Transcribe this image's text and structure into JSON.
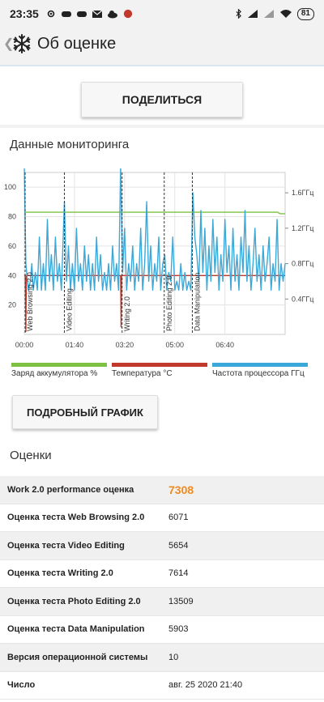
{
  "status_bar": {
    "time": "23:35",
    "battery": "81"
  },
  "app_bar": {
    "title": "Об оценке",
    "logo": "snowflake-icon"
  },
  "share_button": "ПОДЕЛИТЬСЯ",
  "monitoring": {
    "title": "Данные мониторинга",
    "legend": [
      {
        "label": "Заряд аккумулятора %",
        "color": "#7dc142"
      },
      {
        "label": "Температура °C",
        "color": "#c0392b"
      },
      {
        "label": "Частота процессора ГГц",
        "color": "#3aa8d8"
      }
    ]
  },
  "chart_data": {
    "type": "line",
    "x_ticks": [
      "00:00",
      "01:40",
      "03:20",
      "05:00",
      "06:40"
    ],
    "y_left_ticks": [
      20,
      40,
      60,
      80,
      100
    ],
    "y_left_range": [
      0,
      110
    ],
    "y_right_ticks": [
      "0.4ГГц",
      "0.8ГГц",
      "1.2ГГц",
      "1.6ГГц"
    ],
    "y_right_values": [
      0.4,
      0.8,
      1.2,
      1.6
    ],
    "y_right_range": [
      0,
      1.83
    ],
    "x_range_min": [
      0,
      520
    ],
    "test_markers": [
      {
        "label": "Web Browsing 2.0",
        "x_min": 0
      },
      {
        "label": "Video Editing",
        "x_min": 80
      },
      {
        "label": "Writing 2.0",
        "x_min": 195
      },
      {
        "label": "Photo Editing 2.0",
        "x_min": 279
      },
      {
        "label": "Data Manipulation",
        "x_min": 335
      }
    ],
    "series": [
      {
        "name": "Заряд аккумулятора %",
        "color": "#7dc142",
        "axis": "left",
        "points": [
          [
            0,
            83
          ],
          [
            505,
            83
          ],
          [
            510,
            82
          ],
          [
            520,
            82
          ]
        ]
      },
      {
        "name": "Температура °C",
        "color": "#c0392b",
        "axis": "left",
        "points": [
          [
            0,
            40
          ],
          [
            2,
            40
          ],
          [
            3,
            2
          ],
          [
            4,
            40
          ],
          [
            192,
            40
          ],
          [
            193,
            5
          ],
          [
            194,
            40
          ],
          [
            520,
            40
          ]
        ]
      },
      {
        "name": "Частота процессора ГГц",
        "color": "#3aa8d8",
        "axis": "right",
        "points": [
          [
            0,
            1.9
          ],
          [
            3,
            0.8
          ],
          [
            8,
            0.5
          ],
          [
            12,
            0.6
          ],
          [
            15,
            0.8
          ],
          [
            18,
            0.5
          ],
          [
            22,
            0.7
          ],
          [
            26,
            0.5
          ],
          [
            30,
            1.1
          ],
          [
            34,
            0.5
          ],
          [
            38,
            0.8
          ],
          [
            42,
            0.5
          ],
          [
            46,
            1.3
          ],
          [
            50,
            0.6
          ],
          [
            54,
            0.9
          ],
          [
            58,
            0.5
          ],
          [
            62,
            1.1
          ],
          [
            66,
            0.6
          ],
          [
            70,
            0.8
          ],
          [
            74,
            0.5
          ],
          [
            80,
            1.5
          ],
          [
            84,
            0.6
          ],
          [
            88,
            1.0
          ],
          [
            92,
            0.5
          ],
          [
            96,
            0.8
          ],
          [
            100,
            0.5
          ],
          [
            104,
            1.2
          ],
          [
            108,
            0.6
          ],
          [
            112,
            0.8
          ],
          [
            116,
            0.5
          ],
          [
            120,
            1.0
          ],
          [
            124,
            0.6
          ],
          [
            128,
            0.9
          ],
          [
            132,
            0.5
          ],
          [
            136,
            0.8
          ],
          [
            140,
            0.5
          ],
          [
            144,
            1.1
          ],
          [
            148,
            0.6
          ],
          [
            152,
            0.9
          ],
          [
            156,
            0.5
          ],
          [
            160,
            0.7
          ],
          [
            164,
            0.5
          ],
          [
            168,
            0.8
          ],
          [
            172,
            0.5
          ],
          [
            176,
            1.0
          ],
          [
            180,
            0.6
          ],
          [
            184,
            0.8
          ],
          [
            188,
            0.5
          ],
          [
            192,
            1.9
          ],
          [
            196,
            0.7
          ],
          [
            200,
            1.2
          ],
          [
            204,
            0.5
          ],
          [
            208,
            0.8
          ],
          [
            212,
            0.6
          ],
          [
            216,
            1.0
          ],
          [
            220,
            0.5
          ],
          [
            224,
            0.8
          ],
          [
            228,
            0.6
          ],
          [
            232,
            1.2
          ],
          [
            236,
            0.5
          ],
          [
            240,
            0.8
          ],
          [
            244,
            1.5
          ],
          [
            248,
            0.6
          ],
          [
            252,
            1.0
          ],
          [
            256,
            0.5
          ],
          [
            260,
            0.8
          ],
          [
            264,
            0.6
          ],
          [
            268,
            1.1
          ],
          [
            272,
            0.5
          ],
          [
            276,
            0.8
          ],
          [
            280,
            0.9
          ],
          [
            284,
            0.5
          ],
          [
            288,
            0.7
          ],
          [
            292,
            0.6
          ],
          [
            296,
            1.1
          ],
          [
            300,
            0.5
          ],
          [
            304,
            0.6
          ],
          [
            308,
            0.5
          ],
          [
            312,
            0.8
          ],
          [
            316,
            0.5
          ],
          [
            320,
            0.7
          ],
          [
            324,
            0.5
          ],
          [
            328,
            0.6
          ],
          [
            332,
            0.5
          ],
          [
            336,
            1.6
          ],
          [
            340,
            1.1
          ],
          [
            344,
            0.9
          ],
          [
            348,
            0.6
          ],
          [
            352,
            1.4
          ],
          [
            356,
            0.7
          ],
          [
            360,
            1.2
          ],
          [
            364,
            0.5
          ],
          [
            368,
            1.0
          ],
          [
            372,
            0.6
          ],
          [
            376,
            1.3
          ],
          [
            380,
            0.7
          ],
          [
            384,
            1.1
          ],
          [
            388,
            0.5
          ],
          [
            392,
            0.9
          ],
          [
            396,
            0.6
          ],
          [
            400,
            1.3
          ],
          [
            404,
            0.7
          ],
          [
            408,
            1.0
          ],
          [
            412,
            0.5
          ],
          [
            416,
            1.2
          ],
          [
            420,
            0.6
          ],
          [
            424,
            0.9
          ],
          [
            428,
            0.5
          ],
          [
            432,
            1.1
          ],
          [
            436,
            0.7
          ],
          [
            440,
            1.4
          ],
          [
            444,
            0.6
          ],
          [
            448,
            1.0
          ],
          [
            452,
            0.5
          ],
          [
            456,
            0.8
          ],
          [
            460,
            1.2
          ],
          [
            464,
            0.6
          ],
          [
            468,
            0.9
          ],
          [
            472,
            0.5
          ],
          [
            476,
            1.0
          ],
          [
            480,
            0.6
          ],
          [
            484,
            0.8
          ],
          [
            488,
            1.1
          ],
          [
            492,
            0.5
          ],
          [
            496,
            0.8
          ],
          [
            500,
            0.6
          ],
          [
            504,
            1.3
          ],
          [
            508,
            0.5
          ],
          [
            512,
            0.8
          ],
          [
            516,
            0.6
          ],
          [
            520,
            0.8
          ]
        ]
      }
    ]
  },
  "detail_button": "ПОДРОБНЫЙ ГРАФИК",
  "scores": {
    "title": "Оценки",
    "rows": [
      {
        "label": "Work 2.0 performance оценка",
        "value": "7308"
      },
      {
        "label": "Оценка теста Web Browsing 2.0",
        "value": "6071"
      },
      {
        "label": "Оценка теста Video Editing",
        "value": "5654"
      },
      {
        "label": "Оценка теста Writing 2.0",
        "value": "7614"
      },
      {
        "label": "Оценка теста Photo Editing 2.0",
        "value": "13509"
      },
      {
        "label": "Оценка теста Data Manipulation",
        "value": "5903"
      },
      {
        "label": "Версия операционной системы",
        "value": "10"
      },
      {
        "label": "Число",
        "value": "авг. 25 2020 21:40"
      }
    ]
  }
}
